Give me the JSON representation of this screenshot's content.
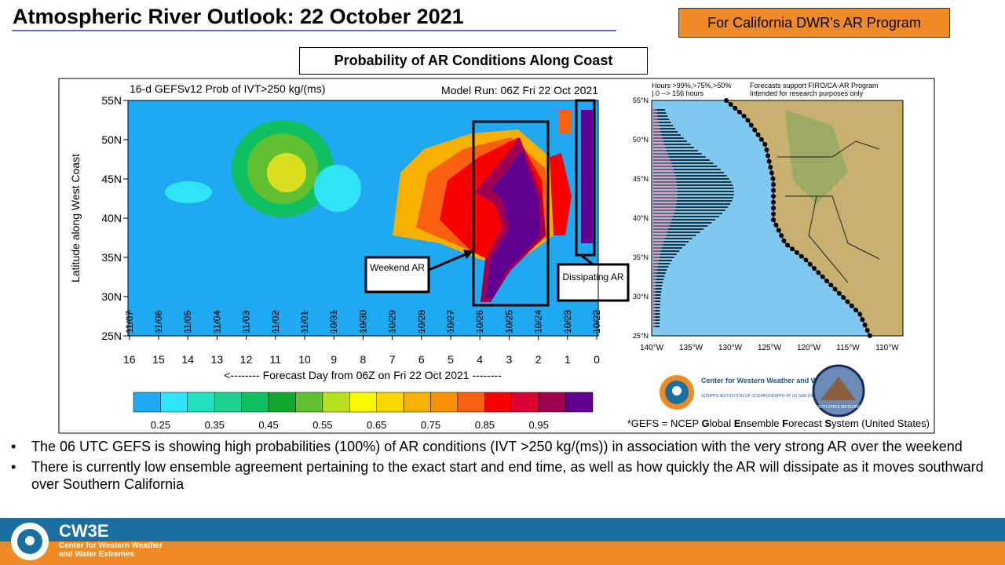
{
  "header": {
    "title": "Atmospheric River Outlook: 22 October 2021",
    "tag": "For California DWR’s AR Program"
  },
  "panel": {
    "title": "Probability of AR Conditions Along Coast"
  },
  "plot": {
    "title_left": "16-d GEFSv12 Prob of IVT>250 kg/(ms)",
    "title_right": "Model Run: 06Z Fri 22 Oct 2021",
    "y_label": "Latitude along West Coast",
    "y_ticks": [
      {
        "value": 55,
        "label": "55N"
      },
      {
        "value": 50,
        "label": "50N"
      },
      {
        "value": 45,
        "label": "45N"
      },
      {
        "value": 40,
        "label": "40N"
      },
      {
        "value": 35,
        "label": "35N"
      },
      {
        "value": 30,
        "label": "30N"
      },
      {
        "value": 25,
        "label": "25N"
      }
    ],
    "days": [
      16,
      15,
      14,
      13,
      12,
      11,
      10,
      9,
      8,
      7,
      6,
      5,
      4,
      3,
      2,
      1,
      0
    ],
    "dates": [
      "11/07",
      "11/06",
      "11/05",
      "11/04",
      "11/03",
      "11/02",
      "11/01",
      "10/31",
      "10/30",
      "10/29",
      "10/28",
      "10/27",
      "10/26",
      "10/25",
      "10/24",
      "10/23",
      "10/22"
    ],
    "x_label": "<-------- Forecast Day from 06Z on Fri 22 Oct 2021 --------",
    "annotations": [
      "Weekend AR",
      "Dissipating AR"
    ]
  },
  "colorbar": {
    "colors": [
      "#1ea9f0",
      "#30e4f8",
      "#20e0c0",
      "#20d090",
      "#10c060",
      "#10a830",
      "#60c030",
      "#b8e020",
      "#f8f800",
      "#f8d800",
      "#f8b000",
      "#f89000",
      "#f86010",
      "#f80000",
      "#d80030",
      "#a00050",
      "#600090"
    ],
    "labels": [
      "0.25",
      "0.35",
      "0.45",
      "0.55",
      "0.65",
      "0.75",
      "0.85",
      "0.95"
    ]
  },
  "map": {
    "legend_left": "Hours >99%,>75%,>50%",
    "legend_left2": "| 0 --> 156 hours",
    "legend_right": "Forecasts support FIRO/CA-AR Program",
    "legend_right2": "Intended for research purposes only",
    "lat_ticks": [
      "55°N",
      "50°N",
      "45°N",
      "40°N",
      "35°N",
      "30°N",
      "25°N"
    ],
    "lon_ticks": [
      "140°W",
      "135°W",
      "130°W",
      "125°W",
      "120°W",
      "115°W",
      "110°W"
    ]
  },
  "logos": {
    "cw3e_name": "Center for Western Weather and Water Extremes",
    "cw3e_sub": "SCRIPPS INSTITUTION OF OCEANOGRAPHY AT UC SAN DIEGO",
    "plymouth": "PLYMOUTH STATE METEOROLOGY"
  },
  "footnote": {
    "parts": [
      {
        "text": "*GEFS = NCEP ",
        "bold": false
      },
      {
        "text": "G",
        "bold": true
      },
      {
        "text": "lobal ",
        "bold": false
      },
      {
        "text": "E",
        "bold": true
      },
      {
        "text": "nsemble ",
        "bold": false
      },
      {
        "text": "F",
        "bold": true
      },
      {
        "text": "orecast ",
        "bold": false
      },
      {
        "text": "S",
        "bold": true
      },
      {
        "text": "ystem (United States)",
        "bold": false
      }
    ]
  },
  "bullets": [
    "The 06 UTC GEFS is showing high probabilities (100%) of AR conditions (IVT >250 kg/(ms)) in association with the very strong AR over the weekend",
    "There is currently low ensemble agreement pertaining to the exact start and end time, as well as how quickly the AR will dissipate as it moves southward over Southern California"
  ],
  "footer": {
    "brand": "CW3E",
    "name": "Center for Western Weather and Water Extremes"
  }
}
